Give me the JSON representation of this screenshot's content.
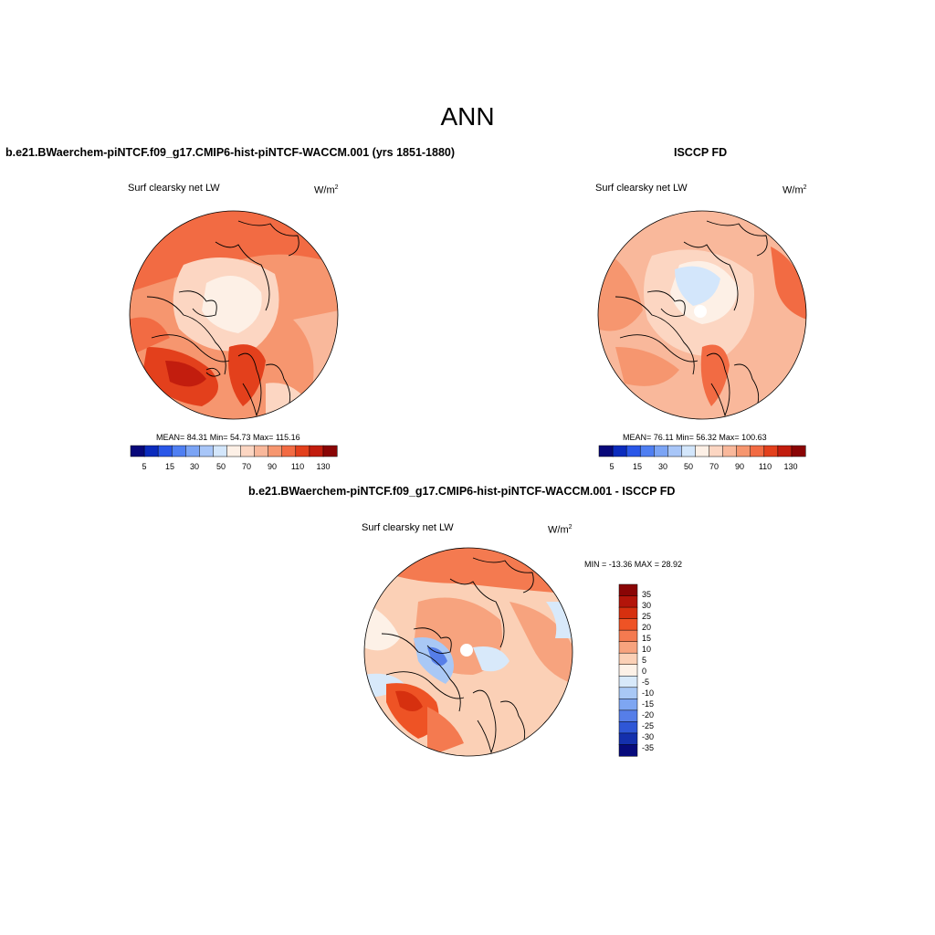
{
  "title": "ANN",
  "panels": [
    {
      "title": "b.e21.BWaerchem-piNTCF.f09_g17.CMIP6-hist-piNTCF-WACCM.001 (yrs 1851-1880)",
      "variable": "Surf clearsky net LW",
      "units_base": "W/m",
      "units_exp": "2",
      "stats": "MEAN=  84.31  Min=  54.73  Max= 115.16",
      "colorbar_labels": [
        "5",
        "15",
        "30",
        "50",
        "70",
        "90",
        "110",
        "130"
      ]
    },
    {
      "title": "ISCCP FD",
      "variable": "Surf clearsky net LW",
      "units_base": "W/m",
      "units_exp": "2",
      "stats": "MEAN=  76.11  Min=  56.32  Max= 100.63",
      "colorbar_labels": [
        "5",
        "15",
        "30",
        "50",
        "70",
        "90",
        "110",
        "130"
      ]
    },
    {
      "title": "b.e21.BWaerchem-piNTCF.f09_g17.CMIP6-hist-piNTCF-WACCM.001 - ISCCP FD",
      "variable": "Surf clearsky net LW",
      "units_base": "W/m",
      "units_exp": "2",
      "stats": "MIN = -13.36 MAX =  28.92",
      "colorbar_labels": [
        "35",
        "30",
        "25",
        "20",
        "15",
        "10",
        "5",
        "0",
        "-5",
        "-10",
        "-15",
        "-20",
        "-25",
        "-30",
        "-35"
      ]
    }
  ],
  "colors": {
    "seq": [
      "#08087a",
      "#0b2bbd",
      "#2a57e8",
      "#4f7ff2",
      "#7ba4f5",
      "#a8c6f8",
      "#d3e6fb",
      "#fdf0e6",
      "#fcd6c2",
      "#f9b89b",
      "#f6966f",
      "#f26b43",
      "#e3401c",
      "#c21d0e",
      "#8a0505"
    ],
    "div": [
      "#8a0505",
      "#b3150a",
      "#d6300f",
      "#ee5325",
      "#f47a50",
      "#f7a37e",
      "#fbd0b6",
      "#fdf1e7",
      "#d8e9fa",
      "#a9c8f5",
      "#7ea6f2",
      "#567ee8",
      "#2f57d6",
      "#1430ad",
      "#070b7c"
    ]
  }
}
